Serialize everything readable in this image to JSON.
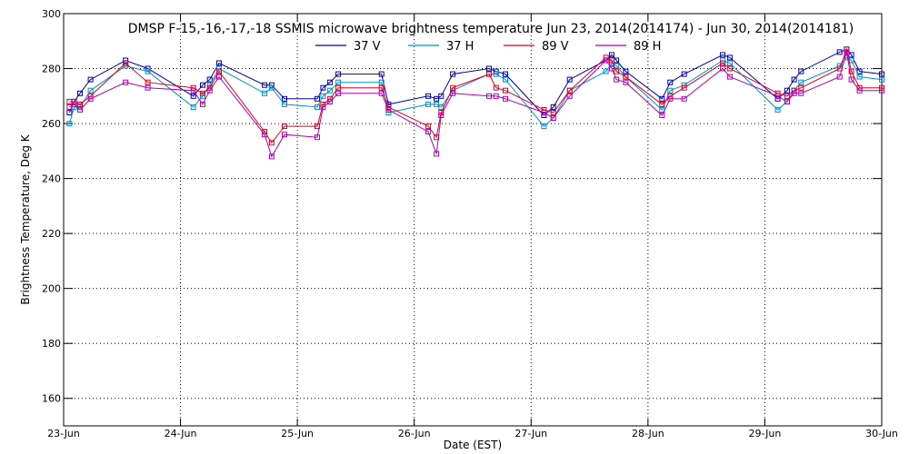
{
  "chart_data": {
    "type": "line",
    "title": "DMSP F-15,-16,-17,-18 SSMIS microwave brightness temperature Jun 23, 2014(2014174) - Jun 30, 2014(2014181)",
    "xlabel": "Date (EST)",
    "ylabel": "Brightness Temperature, Deg K",
    "x_unit": "day offset from 23-Jun",
    "xlim": [
      0,
      7
    ],
    "ylim": [
      150,
      300
    ],
    "x_ticks": [
      0,
      1,
      2,
      3,
      4,
      5,
      6,
      7
    ],
    "x_tick_labels": [
      "23-Jun",
      "24-Jun",
      "25-Jun",
      "26-Jun",
      "27-Jun",
      "28-Jun",
      "29-Jun",
      "30-Jun"
    ],
    "y_ticks": [
      160,
      180,
      200,
      220,
      240,
      260,
      280,
      300
    ],
    "y_tick_labels": [
      "160",
      "180",
      "200",
      "220",
      "240",
      "260",
      "280",
      "300"
    ],
    "grid": true,
    "legend_position": "top-center",
    "x": [
      0.05,
      0.09,
      0.14,
      0.23,
      0.53,
      0.72,
      1.11,
      1.19,
      1.25,
      1.33,
      1.72,
      1.78,
      1.89,
      2.17,
      2.22,
      2.28,
      2.35,
      2.72,
      2.78,
      3.12,
      3.19,
      3.23,
      3.33,
      3.64,
      3.7,
      3.78,
      4.11,
      4.19,
      4.33,
      4.64,
      4.69,
      4.73,
      4.81,
      5.12,
      5.19,
      5.31,
      5.64,
      5.7,
      6.11,
      6.19,
      6.25,
      6.31,
      6.64,
      6.7,
      6.74,
      6.81,
      7.0
    ],
    "series": [
      {
        "name": "37 V",
        "color": "#0000b4",
        "values": [
          264,
          268,
          271,
          276,
          283,
          280,
          270,
          274,
          276,
          282,
          274,
          274,
          269,
          269,
          273,
          275,
          278,
          278,
          267,
          270,
          269,
          270,
          278,
          280,
          279,
          278,
          263,
          266,
          276,
          283,
          285,
          283,
          279,
          269,
          275,
          278,
          285,
          284,
          269,
          272,
          276,
          279,
          286,
          287,
          285,
          279,
          278
        ]
      },
      {
        "name": "37 H",
        "color": "#0090d0",
        "values": [
          260,
          266,
          266,
          272,
          281,
          279,
          266,
          270,
          274,
          280,
          271,
          273,
          267,
          266,
          270,
          272,
          275,
          275,
          264,
          267,
          267,
          266,
          272,
          278,
          278,
          276,
          259,
          262,
          272,
          279,
          282,
          281,
          277,
          265,
          272,
          274,
          283,
          282,
          265,
          268,
          272,
          275,
          281,
          284,
          283,
          277,
          276
        ]
      },
      {
        "name": "89 V",
        "color": "#e0001c",
        "values": [
          268,
          268,
          267,
          270,
          282,
          275,
          273,
          271,
          273,
          279,
          257,
          253,
          259,
          259,
          267,
          269,
          273,
          273,
          266,
          259,
          255,
          264,
          273,
          278,
          273,
          272,
          265,
          264,
          272,
          284,
          283,
          279,
          277,
          267,
          270,
          273,
          282,
          280,
          271,
          270,
          272,
          273,
          280,
          287,
          279,
          273,
          273
        ]
      },
      {
        "name": "89 H",
        "color": "#b000b8",
        "values": [
          266,
          267,
          265,
          269,
          275,
          273,
          272,
          267,
          272,
          277,
          256,
          248,
          256,
          255,
          266,
          268,
          271,
          271,
          265,
          257,
          249,
          263,
          271,
          270,
          270,
          269,
          264,
          262,
          270,
          283,
          280,
          276,
          275,
          263,
          269,
          269,
          280,
          277,
          270,
          268,
          271,
          271,
          277,
          286,
          276,
          272,
          272
        ]
      }
    ]
  }
}
